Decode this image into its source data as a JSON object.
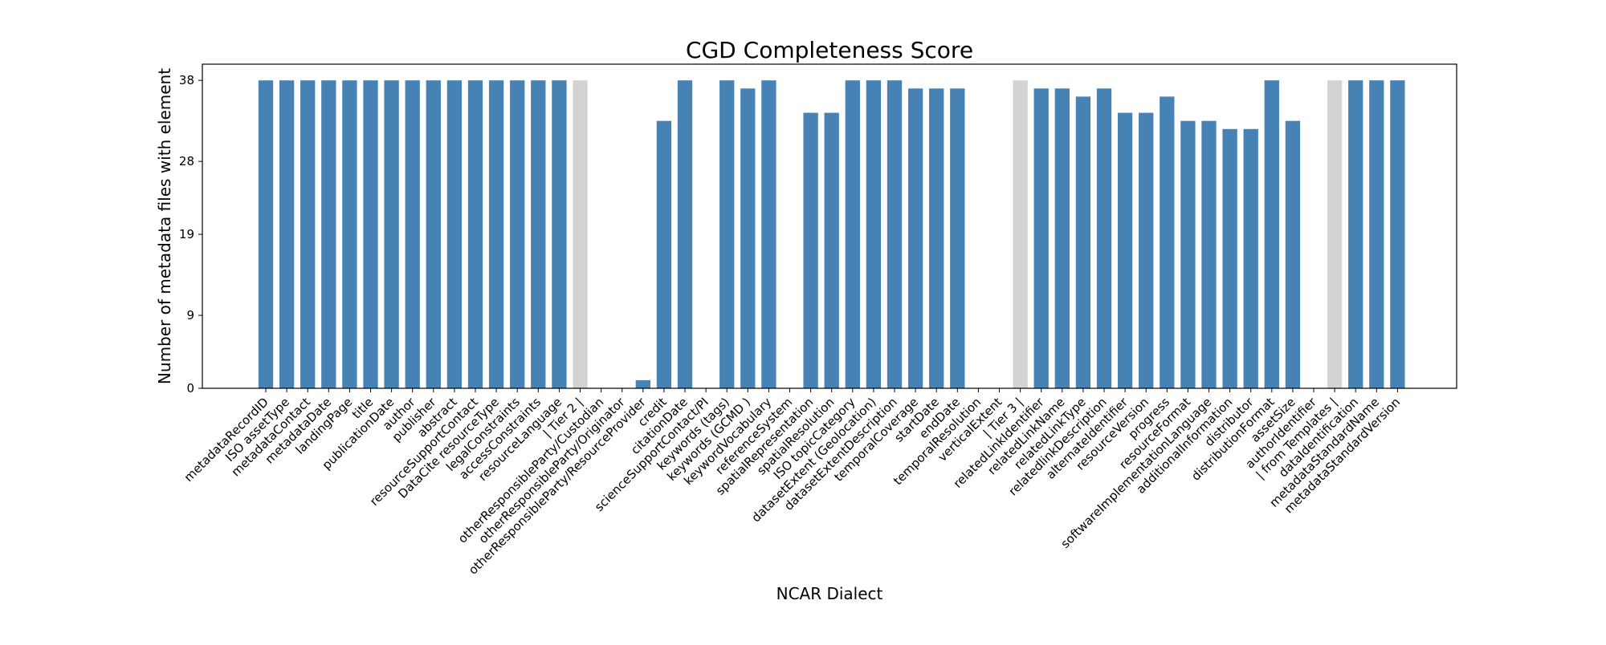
{
  "chart_data": {
    "type": "bar",
    "title": "CGD Completeness Score",
    "xlabel": "NCAR Dialect",
    "ylabel": "Number of metadata files with element",
    "ylim": [
      0,
      40
    ],
    "yticks": [
      0,
      9,
      19,
      28,
      38
    ],
    "grid": false,
    "legend": "none",
    "colors": {
      "bar": "#4682b4",
      "separator": "#d3d3d3"
    },
    "categories": [
      "metadataRecordID",
      "ISO assetType",
      "metadataContact",
      "metadataDate",
      "landingPage",
      "title",
      "publicationDate",
      "author",
      "publisher",
      "abstract",
      "resourceSupportContact",
      "DataCite resourceType",
      "legalConstraints",
      "accessConstraints",
      "resourceLanguage",
      "| Tier 2 |",
      "otherResponsibleParty/Custodian",
      "otherResponsibleParty/Originator",
      "otherResponsibleParty/ResourceProvider",
      "credit",
      "citationDate",
      "scienceSupportContact/PI",
      "keywords (tags)",
      "keywords (GCMD )",
      "keywordVocabulary",
      "referenceSystem",
      "spatialRepresentation",
      "spatialResolution",
      "ISO topicCategory",
      "datasetExtent (Geolocation)",
      "datasetExtentDescription",
      "temporalCoverage",
      "startDate",
      "endDate",
      "temporalResolution",
      "verticalExtent",
      "| Tier 3 |",
      "relatedLinkIdentifier",
      "relatedLinkName",
      "relatedLinkType",
      "relatedlinkDescription",
      "alternateIdentifier",
      "resourceVersion",
      "progress",
      "resourceFormat",
      "softwareImplementationLanguage",
      "additionalInformation",
      "distributor",
      "distributionFormat",
      "assetSize",
      "authorIdentifier",
      "| from Templates |",
      "dataIdentification",
      "metadataStandardName",
      "metadataStandardVersion"
    ],
    "values": [
      38,
      38,
      38,
      38,
      38,
      38,
      38,
      38,
      38,
      38,
      38,
      38,
      38,
      38,
      38,
      38,
      0,
      0,
      1,
      33,
      38,
      0,
      38,
      37,
      38,
      0,
      34,
      34,
      38,
      38,
      38,
      37,
      37,
      37,
      0,
      0,
      38,
      37,
      37,
      36,
      37,
      34,
      34,
      36,
      33,
      33,
      32,
      32,
      38,
      33,
      0,
      38,
      38,
      38,
      38
    ],
    "separators": [
      "| Tier 2 |",
      "| Tier 3 |",
      "| from Templates |"
    ]
  }
}
